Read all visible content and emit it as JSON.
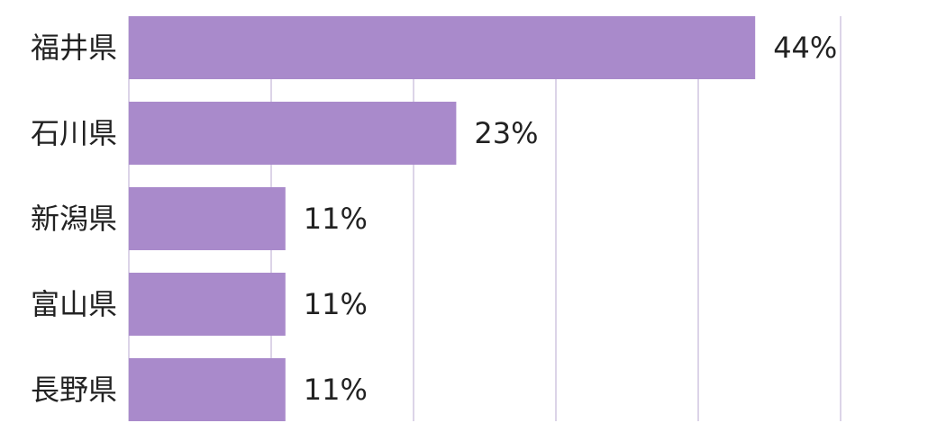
{
  "chart_data": {
    "type": "bar",
    "orientation": "horizontal",
    "categories": [
      "福井県",
      "石川県",
      "新潟県",
      "富山県",
      "長野県"
    ],
    "values": [
      44,
      23,
      11,
      11,
      11
    ],
    "value_labels": [
      "44%",
      "23%",
      "11%",
      "11%",
      "11%"
    ],
    "color": "#a98acb",
    "xlim": [
      0,
      50
    ],
    "xticks": [
      0,
      10,
      20,
      30,
      40,
      50
    ],
    "grid": true
  }
}
